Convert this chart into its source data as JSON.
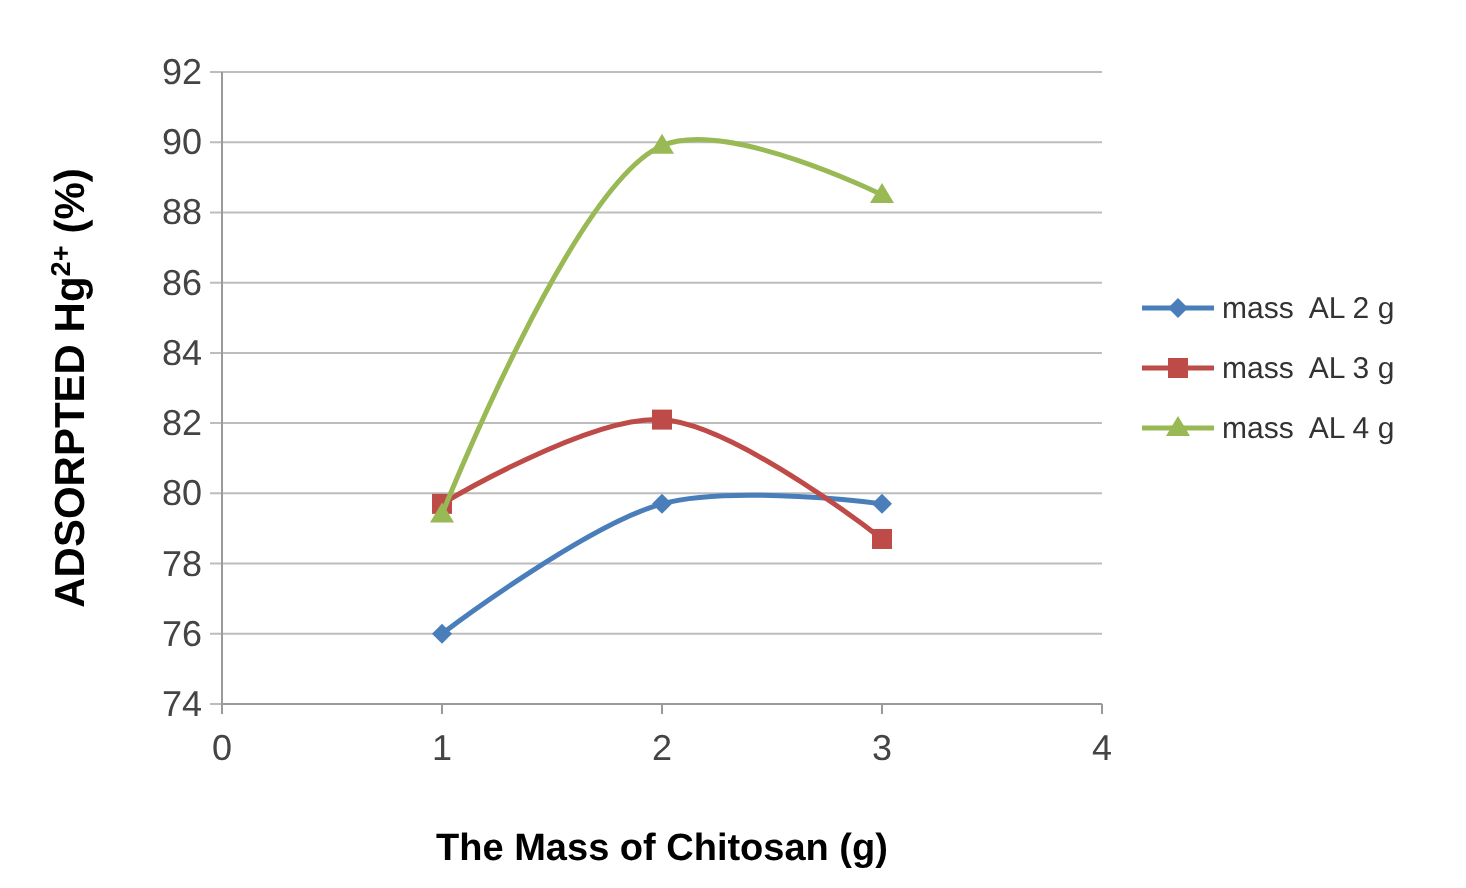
{
  "chart_data": {
    "type": "line",
    "xlabel": "The Mass of Chitosan (g)",
    "ylabel": "ADSORPTED Hg$^{2+}$ (%)",
    "x": [
      1,
      2,
      3
    ],
    "xlim": [
      0,
      4
    ],
    "xticks": [
      0,
      1,
      2,
      3,
      4
    ],
    "ylim": [
      74,
      92
    ],
    "yticks": [
      74,
      76,
      78,
      80,
      82,
      84,
      86,
      88,
      90,
      92
    ],
    "grid": "y",
    "legend": "right",
    "series": [
      {
        "name": "mass  AL 2 g",
        "color": "#4a7ebb",
        "marker": "diamond",
        "values": [
          76,
          79.7,
          79.7
        ]
      },
      {
        "name": "mass  AL 3 g",
        "color": "#be4b48",
        "marker": "square",
        "values": [
          79.7,
          82.1,
          78.7
        ]
      },
      {
        "name": "mass  AL 4 g",
        "color": "#98b954",
        "marker": "triangle",
        "values": [
          79.4,
          89.9,
          88.5
        ]
      }
    ]
  }
}
